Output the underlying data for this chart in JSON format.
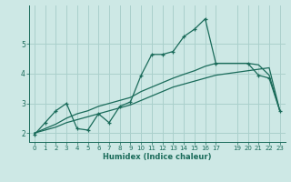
{
  "xlabel": "Humidex (Indice chaleur)",
  "bg_color": "#cde8e5",
  "grid_color": "#aad0cc",
  "line_color": "#1a6b5a",
  "xlim": [
    -0.5,
    23.5
  ],
  "ylim": [
    1.7,
    6.3
  ],
  "yticks": [
    2,
    3,
    4,
    5
  ],
  "x_ticks": [
    0,
    1,
    2,
    3,
    4,
    5,
    6,
    7,
    8,
    9,
    10,
    11,
    12,
    13,
    14,
    15,
    16,
    17,
    19,
    20,
    21,
    22,
    23
  ],
  "line1_x": [
    0,
    1,
    2,
    3,
    4,
    5,
    6,
    7,
    8,
    9,
    10,
    11,
    12,
    13,
    14,
    15,
    16,
    17,
    20,
    21,
    22,
    23
  ],
  "line1_y": [
    1.95,
    2.35,
    2.75,
    3.0,
    2.15,
    2.1,
    2.65,
    2.35,
    2.9,
    3.05,
    3.95,
    4.65,
    4.65,
    4.75,
    5.25,
    5.5,
    5.85,
    4.35,
    4.35,
    3.95,
    3.85,
    2.75
  ],
  "line2_x": [
    0,
    1,
    2,
    3,
    4,
    5,
    6,
    7,
    8,
    9,
    10,
    11,
    12,
    13,
    14,
    15,
    16,
    17,
    20,
    21,
    22,
    23
  ],
  "line2_y": [
    2.0,
    2.1,
    2.2,
    2.35,
    2.45,
    2.55,
    2.65,
    2.75,
    2.85,
    2.95,
    3.1,
    3.25,
    3.4,
    3.55,
    3.65,
    3.75,
    3.85,
    3.95,
    4.1,
    4.15,
    4.2,
    2.75
  ],
  "line3_x": [
    0,
    1,
    2,
    3,
    4,
    5,
    6,
    7,
    8,
    9,
    10,
    11,
    12,
    13,
    14,
    15,
    16,
    17,
    20,
    21,
    22,
    23
  ],
  "line3_y": [
    2.0,
    2.15,
    2.3,
    2.5,
    2.65,
    2.75,
    2.9,
    3.0,
    3.1,
    3.2,
    3.4,
    3.55,
    3.7,
    3.85,
    3.98,
    4.1,
    4.25,
    4.35,
    4.35,
    4.3,
    3.95,
    2.75
  ]
}
